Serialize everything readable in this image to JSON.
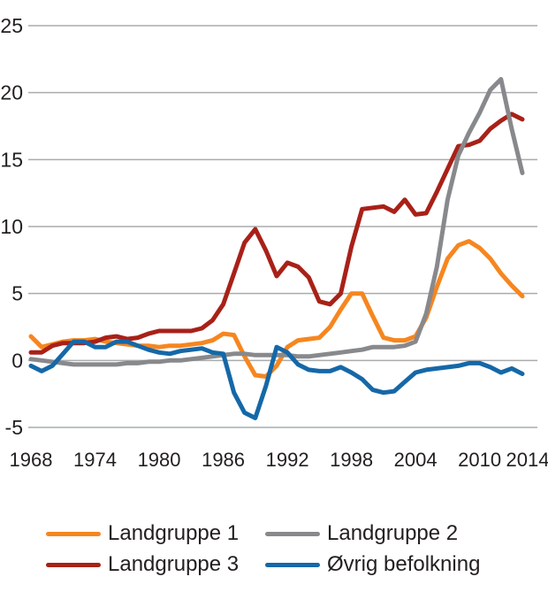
{
  "colors": {
    "background": "#FFFFFF",
    "gridline": "#A9ABAD",
    "text": "#231F20",
    "orange": "#F6861F",
    "gray": "#87898C",
    "red": "#A82118",
    "blue": "#1568A8"
  },
  "chart_data": {
    "type": "line",
    "title": "",
    "xlabel": "",
    "ylabel": "",
    "xlim": [
      1968,
      2014
    ],
    "ylim": [
      -5,
      25
    ],
    "grid": "horizontal",
    "legend_position": "bottom",
    "y_ticks": [
      25,
      20,
      15,
      10,
      5,
      0,
      -5
    ],
    "x_tick_labels": [
      "1968",
      "1974",
      "1980",
      "1986",
      "1992",
      "1998",
      "2004",
      "2010",
      "2014"
    ],
    "x": [
      1968,
      1969,
      1970,
      1971,
      1972,
      1973,
      1974,
      1975,
      1976,
      1977,
      1978,
      1979,
      1980,
      1981,
      1982,
      1983,
      1984,
      1985,
      1986,
      1987,
      1988,
      1989,
      1990,
      1991,
      1992,
      1993,
      1994,
      1995,
      1996,
      1997,
      1998,
      1999,
      2000,
      2001,
      2002,
      2003,
      2004,
      2005,
      2006,
      2007,
      2008,
      2009,
      2010,
      2011,
      2012,
      2013,
      2014
    ],
    "draw_order": [
      "Landgruppe 1",
      "Landgruppe 3",
      "Landgruppe 2",
      "Øvrig befolkning"
    ],
    "series": [
      {
        "name": "Landgruppe 1",
        "color": "#F6861F",
        "values": [
          1.8,
          1.0,
          1.2,
          1.4,
          1.5,
          1.5,
          1.6,
          1.4,
          1.3,
          1.2,
          1.1,
          1.1,
          1.0,
          1.1,
          1.1,
          1.2,
          1.3,
          1.5,
          2.0,
          1.9,
          0.3,
          -1.1,
          -1.2,
          -0.4,
          1.0,
          1.5,
          1.6,
          1.7,
          2.5,
          3.8,
          5.0,
          5.0,
          3.3,
          1.7,
          1.5,
          1.5,
          1.8,
          3.2,
          5.5,
          7.6,
          8.6,
          8.9,
          8.4,
          7.6,
          6.5,
          5.6,
          4.8
        ]
      },
      {
        "name": "Landgruppe 2",
        "color": "#87898C",
        "values": [
          0.1,
          0.0,
          -0.1,
          -0.2,
          -0.3,
          -0.3,
          -0.3,
          -0.3,
          -0.3,
          -0.2,
          -0.2,
          -0.1,
          -0.1,
          0.0,
          0.0,
          0.1,
          0.2,
          0.3,
          0.4,
          0.5,
          0.5,
          0.4,
          0.4,
          0.4,
          0.4,
          0.3,
          0.3,
          0.4,
          0.5,
          0.6,
          0.7,
          0.8,
          1.0,
          1.0,
          1.0,
          1.1,
          1.4,
          3.5,
          7.0,
          12.0,
          15.3,
          17.0,
          18.5,
          20.2,
          21.0,
          17.3,
          14.0
        ]
      },
      {
        "name": "Landgruppe 3",
        "color": "#A82118",
        "values": [
          0.6,
          0.6,
          1.1,
          1.3,
          1.3,
          1.3,
          1.4,
          1.7,
          1.8,
          1.6,
          1.7,
          2.0,
          2.2,
          2.2,
          2.2,
          2.2,
          2.4,
          3.0,
          4.2,
          6.5,
          8.8,
          9.8,
          8.2,
          6.3,
          7.3,
          7.0,
          6.2,
          4.4,
          4.2,
          5.0,
          8.5,
          11.3,
          11.4,
          11.5,
          11.1,
          12.0,
          10.9,
          11.0,
          12.6,
          14.3,
          16.0,
          16.1,
          16.4,
          17.3,
          17.9,
          18.4,
          18.0
        ]
      },
      {
        "name": "Øvrig befolkning",
        "color": "#1568A8",
        "values": [
          -0.4,
          -0.8,
          -0.4,
          0.5,
          1.4,
          1.4,
          1.0,
          1.0,
          1.4,
          1.4,
          1.1,
          0.8,
          0.6,
          0.5,
          0.7,
          0.8,
          0.9,
          0.6,
          0.5,
          -2.4,
          -3.9,
          -4.3,
          -1.9,
          1.0,
          0.6,
          -0.3,
          -0.7,
          -0.8,
          -0.8,
          -0.5,
          -0.9,
          -1.4,
          -2.2,
          -2.4,
          -2.3,
          -1.6,
          -0.9,
          -0.7,
          -0.6,
          -0.5,
          -0.4,
          -0.2,
          -0.2,
          -0.5,
          -0.9,
          -0.6,
          -1.0
        ]
      }
    ]
  },
  "legend": {
    "items": [
      {
        "label": "Landgruppe 1",
        "color": "#F6861F"
      },
      {
        "label": "Landgruppe 2",
        "color": "#87898C"
      },
      {
        "label": "Landgruppe 3",
        "color": "#A82118"
      },
      {
        "label": "Øvrig befolkning",
        "color": "#1568A8"
      }
    ]
  }
}
